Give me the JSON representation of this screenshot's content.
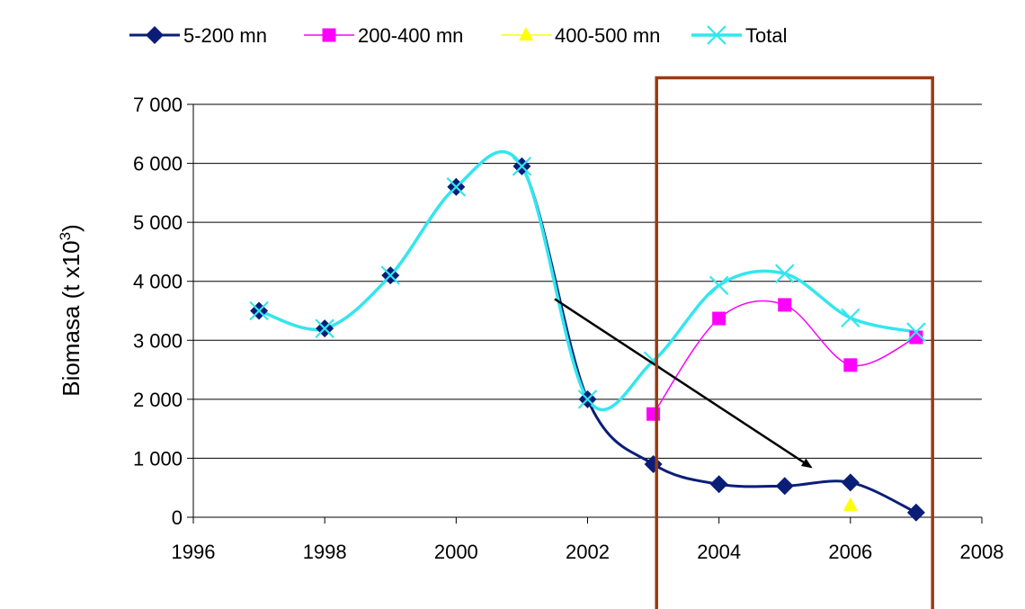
{
  "colors": {
    "slide_background_dark": "#1b4f86",
    "slide_background_light": "#3a7fc0",
    "plot_background": "#ffffff",
    "gridline": "#000000",
    "highlight_box": "#9a3a10",
    "trend_arrow": "#000000"
  },
  "chart_data": {
    "type": "line",
    "title": "",
    "xlabel": "",
    "ylabel": "Biomasa (t x10",
    "ylabel_superscript": "3",
    "ylabel_close": ")",
    "xlim": [
      1996,
      2008
    ],
    "ylim": [
      0,
      7000
    ],
    "x_ticks": [
      1996,
      1998,
      2000,
      2002,
      2004,
      2006,
      2008
    ],
    "y_ticks": [
      0,
      1000,
      2000,
      3000,
      4000,
      5000,
      6000,
      7000
    ],
    "y_tick_labels": [
      "0",
      "1 000",
      "2 000",
      "3 000",
      "4 000",
      "5 000",
      "6 000",
      "7 000"
    ],
    "grid": "horizontal",
    "legend_position": "top",
    "series": [
      {
        "name": "5-200 mn",
        "color": "#0a1e78",
        "marker": "diamond",
        "x": [
          1997,
          1998,
          1999,
          2000,
          2001,
          2002,
          2003,
          2004,
          2005,
          2006,
          2007
        ],
        "values": [
          3500,
          3200,
          4100,
          5600,
          5950,
          2000,
          900,
          560,
          530,
          590,
          80
        ]
      },
      {
        "name": "200-400 mn",
        "color": "#ff00ff",
        "marker": "square",
        "x": [
          2003,
          2004,
          2005,
          2006,
          2007
        ],
        "values": [
          1750,
          3370,
          3600,
          2580,
          3050
        ]
      },
      {
        "name": "400-500 mn",
        "color": "#ffff00",
        "marker": "triangle",
        "x": [
          2006
        ],
        "values": [
          200
        ]
      },
      {
        "name": "Total",
        "color": "#33e6ee",
        "marker": "x",
        "x": [
          1997,
          1998,
          1999,
          2000,
          2001,
          2002,
          2003,
          2004,
          2005,
          2006,
          2007
        ],
        "values": [
          3500,
          3200,
          4100,
          5600,
          5950,
          2000,
          2650,
          3930,
          4130,
          3380,
          3140
        ]
      }
    ],
    "annotations": [
      {
        "type": "arrow",
        "from": [
          2001.5,
          3700
        ],
        "to": [
          2005.4,
          850
        ]
      },
      {
        "type": "box",
        "x_range": [
          2003.05,
          2007.25
        ],
        "y_top": 7450
      }
    ]
  }
}
